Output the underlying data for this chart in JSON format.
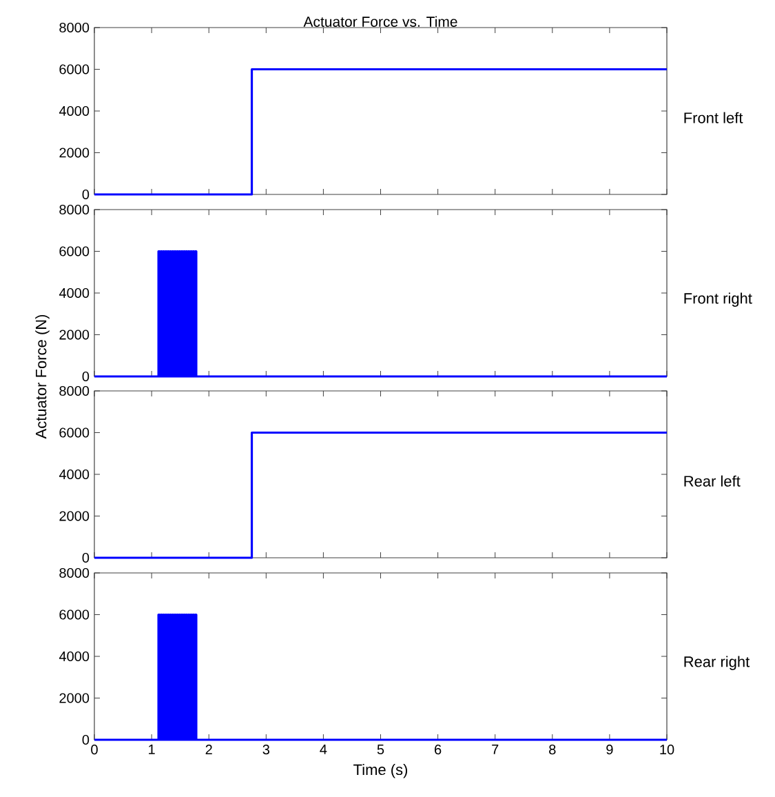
{
  "chart_data": [
    {
      "type": "line",
      "title": "Actuator Force vs. Time",
      "x": [
        0,
        2.75,
        2.75,
        10
      ],
      "series": [
        {
          "color": "#0000ff",
          "values": [
            0,
            0,
            6000,
            6000
          ]
        }
      ],
      "xlim": [
        0,
        10
      ],
      "ylim": [
        0,
        8000
      ],
      "xticks": [
        0,
        1,
        2,
        3,
        4,
        5,
        6,
        7,
        8,
        9,
        10
      ],
      "yticks": [
        0,
        2000,
        4000,
        6000,
        8000
      ],
      "tick_labels": "y",
      "annotations": [
        "Front left"
      ]
    },
    {
      "type": "line",
      "ylabel": "Actuator Force (N)",
      "x": [
        0,
        1.12,
        1.12,
        1.14,
        1.14,
        1.16,
        1.16,
        1.18,
        1.18,
        1.2,
        1.2,
        1.22,
        1.22,
        1.24,
        1.24,
        1.26,
        1.26,
        1.28,
        1.28,
        1.3,
        1.3,
        1.32,
        1.32,
        1.34,
        1.34,
        1.36,
        1.36,
        1.38,
        1.38,
        1.4,
        1.4,
        1.42,
        1.42,
        1.44,
        1.44,
        1.46,
        1.46,
        1.48,
        1.48,
        1.5,
        1.5,
        1.52,
        1.52,
        1.54,
        1.54,
        1.56,
        1.56,
        1.58,
        1.58,
        1.6,
        1.6,
        1.62,
        1.62,
        1.64,
        1.64,
        1.66,
        1.66,
        1.68,
        1.68,
        1.7,
        1.7,
        1.72,
        1.72,
        1.74,
        1.74,
        1.76,
        1.76,
        1.78,
        1.78,
        10
      ],
      "series": [
        {
          "color": "#0000ff",
          "values": [
            0,
            0,
            6000,
            6000,
            0,
            0,
            6000,
            6000,
            0,
            0,
            6000,
            6000,
            0,
            0,
            6000,
            6000,
            0,
            0,
            6000,
            6000,
            0,
            0,
            6000,
            6000,
            0,
            0,
            6000,
            6000,
            0,
            0,
            6000,
            6000,
            0,
            0,
            6000,
            6000,
            0,
            0,
            6000,
            6000,
            0,
            0,
            6000,
            6000,
            0,
            0,
            6000,
            6000,
            0,
            0,
            6000,
            6000,
            0,
            0,
            6000,
            6000,
            0,
            0,
            6000,
            6000,
            0,
            0,
            6000,
            6000,
            0,
            0,
            6000,
            6000,
            0,
            0
          ]
        }
      ],
      "xlim": [
        0,
        10
      ],
      "ylim": [
        0,
        8000
      ],
      "xticks": [
        0,
        1,
        2,
        3,
        4,
        5,
        6,
        7,
        8,
        9,
        10
      ],
      "yticks": [
        0,
        2000,
        4000,
        6000,
        8000
      ],
      "tick_labels": "y",
      "annotations": [
        "Front right"
      ]
    },
    {
      "type": "line",
      "x": [
        0,
        2.75,
        2.75,
        10
      ],
      "series": [
        {
          "color": "#0000ff",
          "values": [
            0,
            0,
            6000,
            6000
          ]
        }
      ],
      "xlim": [
        0,
        10
      ],
      "ylim": [
        0,
        8000
      ],
      "xticks": [
        0,
        1,
        2,
        3,
        4,
        5,
        6,
        7,
        8,
        9,
        10
      ],
      "yticks": [
        0,
        2000,
        4000,
        6000,
        8000
      ],
      "tick_labels": "y",
      "annotations": [
        "Rear left"
      ]
    },
    {
      "type": "line",
      "xlabel": "Time (s)",
      "x": [
        0,
        1.12,
        1.12,
        1.14,
        1.14,
        1.16,
        1.16,
        1.18,
        1.18,
        1.2,
        1.2,
        1.22,
        1.22,
        1.24,
        1.24,
        1.26,
        1.26,
        1.28,
        1.28,
        1.3,
        1.3,
        1.32,
        1.32,
        1.34,
        1.34,
        1.36,
        1.36,
        1.38,
        1.38,
        1.4,
        1.4,
        1.42,
        1.42,
        1.44,
        1.44,
        1.46,
        1.46,
        1.48,
        1.48,
        1.5,
        1.5,
        1.52,
        1.52,
        1.54,
        1.54,
        1.56,
        1.56,
        1.58,
        1.58,
        1.6,
        1.6,
        1.62,
        1.62,
        1.64,
        1.64,
        1.66,
        1.66,
        1.68,
        1.68,
        1.7,
        1.7,
        1.72,
        1.72,
        1.74,
        1.74,
        1.76,
        1.76,
        1.78,
        1.78,
        10
      ],
      "series": [
        {
          "color": "#0000ff",
          "values": [
            0,
            0,
            6000,
            6000,
            0,
            0,
            6000,
            6000,
            0,
            0,
            6000,
            6000,
            0,
            0,
            6000,
            6000,
            0,
            0,
            6000,
            6000,
            0,
            0,
            6000,
            6000,
            0,
            0,
            6000,
            6000,
            0,
            0,
            6000,
            6000,
            0,
            0,
            6000,
            6000,
            0,
            0,
            6000,
            6000,
            0,
            0,
            6000,
            6000,
            0,
            0,
            6000,
            6000,
            0,
            0,
            6000,
            6000,
            0,
            0,
            6000,
            6000,
            0,
            0,
            6000,
            6000,
            0,
            0,
            6000,
            6000,
            0,
            0,
            6000,
            6000,
            0,
            0
          ]
        }
      ],
      "xlim": [
        0,
        10
      ],
      "ylim": [
        0,
        8000
      ],
      "xticks": [
        0,
        1,
        2,
        3,
        4,
        5,
        6,
        7,
        8,
        9,
        10
      ],
      "yticks": [
        0,
        2000,
        4000,
        6000,
        8000
      ],
      "annotations": [
        "Rear right"
      ]
    }
  ]
}
